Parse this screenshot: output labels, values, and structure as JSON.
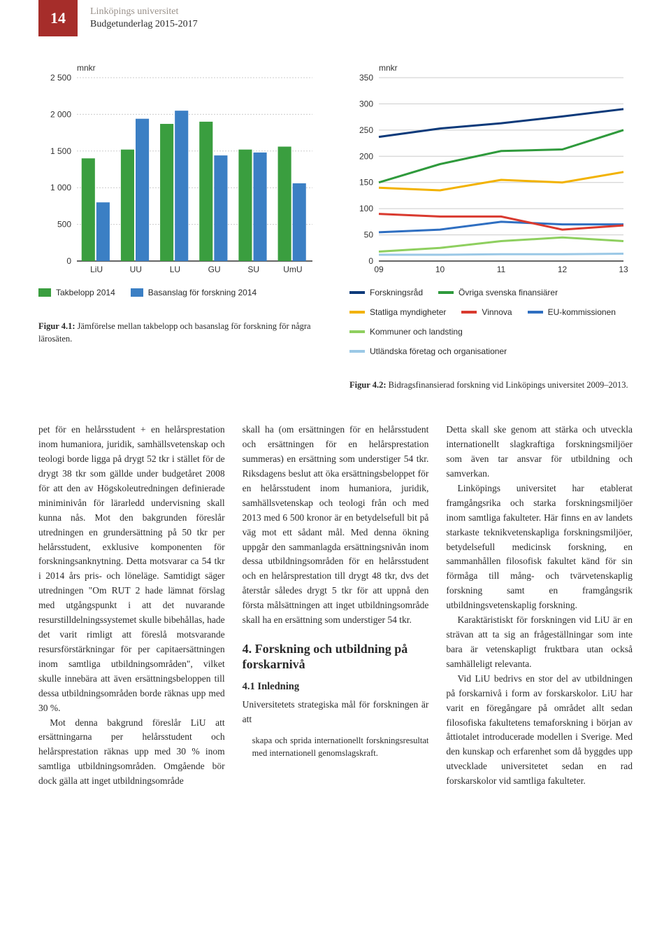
{
  "header": {
    "page_number": "14",
    "university": "Linköpings universitet",
    "doc_title": "Budgetunderlag 2015-2017"
  },
  "bar_chart": {
    "type": "bar",
    "unit_label": "mnkr",
    "categories": [
      "LiU",
      "UU",
      "LU",
      "GU",
      "SU",
      "UmU"
    ],
    "series": [
      {
        "name": "Takbelopp 2014",
        "color": "#3a9e3f",
        "values": [
          1400,
          1520,
          1870,
          1900,
          1520,
          1560
        ]
      },
      {
        "name": "Basanslag för forskning 2014",
        "color": "#3b7fc4",
        "values": [
          800,
          1940,
          2050,
          1440,
          1480,
          1060
        ]
      }
    ],
    "ylim": [
      0,
      2500
    ],
    "ytick_step": 500,
    "y_ticks": [
      "0",
      "500",
      "1 000",
      "1 500",
      "2 000",
      "2 500"
    ],
    "background": "#ffffff",
    "grid_color": "#cccccc",
    "label_fontsize": 12
  },
  "line_chart": {
    "type": "line",
    "unit_label": "mnkr",
    "x_categories": [
      "09",
      "10",
      "11",
      "12",
      "13"
    ],
    "ylim": [
      0,
      350
    ],
    "ytick_step": 50,
    "y_ticks": [
      "0",
      "50",
      "100",
      "150",
      "200",
      "250",
      "300",
      "350"
    ],
    "background": "#ffffff",
    "grid_color": "#cccccc",
    "line_width": 3,
    "series": [
      {
        "name": "Forskningsråd",
        "color": "#0d3a7a",
        "values": [
          237,
          253,
          263,
          276,
          290
        ]
      },
      {
        "name": "Statliga myndigheter",
        "color": "#f2b200",
        "values": [
          140,
          135,
          155,
          150,
          170
        ]
      },
      {
        "name": "EU-kommissionen",
        "color": "#2f6fc1",
        "values": [
          55,
          60,
          75,
          70,
          70
        ]
      },
      {
        "name": "Utländska företag och organisationer",
        "color": "#9bc8e6",
        "values": [
          12,
          12,
          13,
          13,
          14
        ]
      },
      {
        "name": "Övriga svenska finansiärer",
        "color": "#2f9a3c",
        "values": [
          150,
          185,
          210,
          213,
          250
        ]
      },
      {
        "name": "Vinnova",
        "color": "#d93a2f",
        "values": [
          90,
          85,
          85,
          60,
          68
        ]
      },
      {
        "name": "Kommuner och landsting",
        "color": "#8ecf5f",
        "values": [
          18,
          25,
          38,
          45,
          38
        ]
      }
    ],
    "legend_labels": {
      "l1": "Forskningsråd",
      "l2": "Statliga myndigheter",
      "l3": "EU-kommissionen",
      "l4": "Utländska företag och organisationer",
      "l5": "Övriga svenska finansiärer",
      "l6": "Vinnova",
      "l7": "Kommuner och landsting"
    }
  },
  "captions": {
    "fig41_label": "Figur 4.1:",
    "fig41_text": " Jämförelse mellan takbelopp och basanslag för forskning för några lärosäten.",
    "fig42_label": "Figur 4.2:",
    "fig42_text": " Bidragsfinansierad forskning vid Linköpings universitet 2009–2013."
  },
  "body": {
    "col1_p1": "pet för en helårsstudent + en helårsprestation inom humaniora, juridik, samhällsvetenskap och teologi borde ligga på drygt 52 tkr i stället för de drygt 38 tkr som gällde under budgetåret 2008 för att den av Högskoleutredningen definierade miniminivån för lärarledd undervisning skall kunna nås. Mot den bakgrunden föreslår utredningen en grundersättning på 50 tkr per helårsstudent, exklusive komponenten för forskningsanknytning. Detta motsvarar ca 54 tkr i 2014 års pris- och löneläge. Samtidigt säger utredningen \"Om RUT 2 hade lämnat förslag med utgångspunkt i att det nuvarande resurstilldelningssystemet skulle bibehållas, hade det varit rimligt att föreslå motsvarande resursförstärkningar för per capitaersättningen inom samtliga utbildningsområden\", vilket skulle innebära att även ersättningsbeloppen till dessa utbildningsområden borde räknas upp med 30 %.",
    "col1_p2": "Mot denna bakgrund föreslår LiU att ersättningarna per helårsstudent och helårsprestation räknas upp med 30 % inom samtliga utbildningsområden. Omgående bör dock gälla att inget utbildningsområde",
    "col2_p1": "skall ha (om ersättningen för en helårsstudent och ersättningen för en helårsprestation summeras) en ersättning som understiger 54 tkr. Riksdagens beslut att öka ersättningsbeloppet för en helårsstudent inom humaniora, juridik, samhällsvetenskap och teologi från och med 2013 med 6 500 kronor är en betydelsefull bit på väg mot ett sådant mål. Med denna ökning uppgår den sammanlagda ersättningsnivån inom dessa utbildningsområden för en helårsstudent och en helårsprestation till drygt 48 tkr, dvs det återstår således drygt 5 tkr för att uppnå den första målsättningen att inget utbildningsområde skall ha en ersättning som understiger 54 tkr.",
    "col2_h4": "4. Forskning och utbildning på forskarnivå",
    "col2_h41": "4.1 Inledning",
    "col2_p2": "Universitetets strategiska mål för forskningen är att",
    "col2_quote": "skapa och sprida internationellt forskningsresultat med internationell genomslagskraft.",
    "col3_p1": "Detta skall ske genom att stärka och utveckla internationellt slagkraftiga forskningsmiljöer som även tar ansvar för utbildning och samverkan.",
    "col3_p2": "Linköpings universitet har etablerat framgångsrika och starka forskningsmiljöer inom samtliga fakulteter. Här finns en av landets starkaste teknikvetenskapliga forskningsmiljöer, betydelsefull medicinsk forskning, en sammanhållen filosofisk fakultet känd för sin förmåga till mång- och tvärvetenskaplig forskning samt en framgångsrik utbildningsvetenskaplig forskning.",
    "col3_p3": "Karaktäristiskt för forskningen vid LiU är en strävan att ta sig an frågeställningar som inte bara är vetenskapligt fruktbara utan också samhälleligt relevanta.",
    "col3_p4": "Vid LiU bedrivs en stor del av utbildningen på forskarnivå i form av forskarskolor. LiU har varit en föregångare på området allt sedan filosofiska fakultetens temaforskning i början av åttiotalet introducerade modellen i Sverige. Med den kunskap och erfarenhet som då byggdes upp utvecklade universitetet sedan en rad forskarskolor vid samtliga fakulteter."
  }
}
